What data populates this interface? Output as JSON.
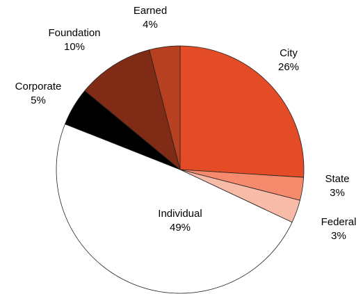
{
  "chart_data": {
    "type": "pie",
    "categories": [
      "City",
      "State",
      "Federal",
      "Individual",
      "Corporate",
      "Foundation",
      "Earned"
    ],
    "values": [
      26,
      3,
      3,
      49,
      5,
      10,
      4
    ],
    "value_labels": [
      "26%",
      "3%",
      "3%",
      "49%",
      "5%",
      "10%",
      "4%"
    ],
    "colors": [
      "#e34c27",
      "#f58a6c",
      "#f7bba8",
      "#ffffff",
      "#000000",
      "#7f2b16",
      "#b6401f"
    ]
  }
}
